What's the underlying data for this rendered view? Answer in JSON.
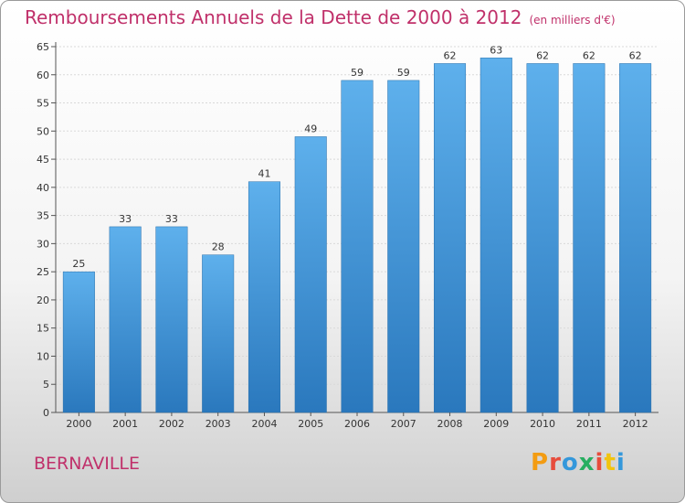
{
  "header": {
    "title": "Remboursements Annuels de la Dette de 2000 à 2012",
    "subtitle": "(en milliers d'€)"
  },
  "footer": {
    "commune": "BERNAVILLE",
    "logo": "Proxiti",
    "logo_colors": [
      "#f39c12",
      "#e74c3c",
      "#3498db",
      "#27ae60",
      "#e74c3c",
      "#f1c40f",
      "#3498db"
    ]
  },
  "chart_data": {
    "type": "bar",
    "categories": [
      "2000",
      "2001",
      "2002",
      "2003",
      "2004",
      "2005",
      "2006",
      "2007",
      "2008",
      "2009",
      "2010",
      "2011",
      "2012"
    ],
    "values": [
      25,
      33,
      33,
      28,
      41,
      49,
      59,
      59,
      62,
      63,
      62,
      62,
      62
    ],
    "data_labels": [
      "25",
      "33",
      "33",
      "28",
      "41",
      "49",
      "59",
      "59",
      "62",
      "63",
      "62",
      "62",
      "62"
    ],
    "yticks": [
      "0",
      "5",
      "10",
      "15",
      "20",
      "25",
      "30",
      "35",
      "40",
      "45",
      "50",
      "55",
      "60",
      "65"
    ],
    "ylim": [
      0,
      65
    ],
    "grid": true,
    "bar_color": "#3a8fd6"
  }
}
